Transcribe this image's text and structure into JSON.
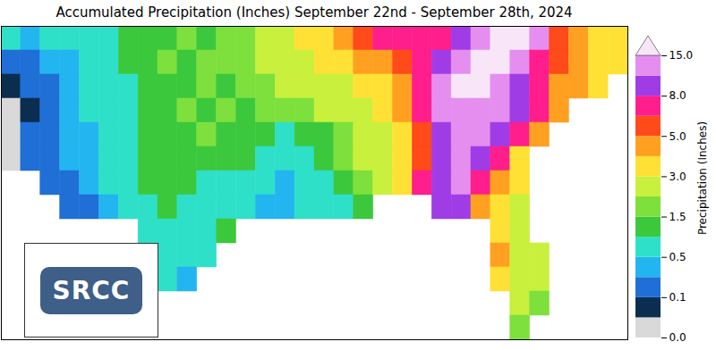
{
  "chart_data": {
    "type": "heatmap",
    "title": "Accumulated Precipitation (Inches) September 22nd - September 28th, 2024",
    "logo": "SRCC",
    "x": [
      -107,
      -106,
      -105,
      -104,
      -103,
      -102,
      -101,
      -100,
      -99,
      -98,
      -97,
      -96,
      -95,
      -94,
      -93,
      -92,
      -91,
      -90,
      -89,
      -88,
      -87,
      -86,
      -85,
      -84,
      -83,
      -82,
      -81,
      -80,
      -79,
      -78,
      -77,
      -76
    ],
    "y": [
      36.5,
      35.5,
      34.5,
      33.5,
      32.5,
      31.5,
      30.5,
      29.5,
      28.5,
      27.5,
      26.5,
      25.5,
      24.5
    ],
    "values": [
      [
        0.5,
        0.4,
        0.6,
        0.5,
        0.6,
        0.8,
        1.0,
        1.2,
        1.0,
        1.5,
        1.2,
        1.5,
        1.8,
        2.0,
        2.5,
        3,
        3.5,
        4,
        5,
        6,
        6,
        7,
        6,
        8,
        10,
        15,
        16,
        10,
        5,
        4,
        3.5,
        3
      ],
      [
        0.1,
        0.2,
        0.3,
        0.3,
        0.6,
        0.8,
        1.0,
        1.2,
        1.5,
        1.2,
        1.5,
        1.8,
        1.5,
        2.0,
        2.5,
        2.5,
        3.0,
        3.5,
        4,
        4.5,
        5,
        6,
        8,
        12,
        18,
        20,
        14,
        7,
        5,
        4,
        3.5,
        3
      ],
      [
        0.05,
        0.1,
        0.2,
        0.3,
        0.5,
        0.6,
        0.8,
        1.0,
        1.2,
        1.0,
        1.5,
        1.2,
        1.5,
        1.8,
        2.0,
        2.0,
        2.5,
        2.5,
        3,
        3.5,
        4,
        6,
        10,
        15,
        16,
        12,
        9,
        6,
        4,
        4,
        3.5,
        null
      ],
      [
        0.0,
        0.05,
        0.1,
        0.3,
        0.5,
        0.6,
        0.8,
        1.0,
        1.2,
        1.5,
        1.2,
        1.5,
        1.2,
        1.5,
        1.5,
        1.8,
        2.0,
        2,
        2.5,
        3,
        4,
        6,
        10,
        12,
        12,
        10,
        8,
        6,
        4,
        null,
        null,
        null
      ],
      [
        0.0,
        0.1,
        0.2,
        0.3,
        0.4,
        0.5,
        0.7,
        1.0,
        1.2,
        1.0,
        1.5,
        1.2,
        1.0,
        1.0,
        0.8,
        1.0,
        1.2,
        1.8,
        2.0,
        2.5,
        3.5,
        5,
        8,
        10,
        11,
        9,
        6,
        4,
        null,
        null,
        null,
        null
      ],
      [
        0.0,
        0.1,
        0.2,
        0.3,
        0.4,
        0.5,
        0.8,
        1.0,
        1.2,
        1.0,
        1.2,
        1.0,
        1.2,
        0.8,
        0.6,
        0.8,
        1.2,
        1.5,
        2.0,
        2.5,
        3.5,
        5,
        9,
        10,
        9,
        6,
        3,
        null,
        null,
        null,
        null,
        null
      ],
      [
        null,
        null,
        0.1,
        0.2,
        0.3,
        0.6,
        0.8,
        1.0,
        1.2,
        1.0,
        0.8,
        0.7,
        0.6,
        0.5,
        0.4,
        0.5,
        0.8,
        1.0,
        1.5,
        2.5,
        3.5,
        6,
        9,
        10,
        7,
        4,
        3,
        null,
        null,
        null,
        null,
        null
      ],
      [
        null,
        null,
        null,
        0.2,
        0.2,
        0.3,
        0.5,
        0.8,
        1.0,
        0.8,
        0.7,
        0.6,
        0.5,
        0.3,
        0.4,
        0.6,
        0.5,
        0.8,
        1.0,
        null,
        null,
        null,
        8,
        8,
        4,
        3,
        2.5,
        null,
        null,
        null,
        null,
        null
      ],
      [
        null,
        null,
        null,
        null,
        null,
        null,
        null,
        0.5,
        0.8,
        0.6,
        0.7,
        1.0,
        null,
        null,
        null,
        null,
        null,
        null,
        null,
        null,
        null,
        null,
        null,
        null,
        null,
        3.5,
        2.5,
        null,
        null,
        null,
        null,
        null
      ],
      [
        null,
        null,
        null,
        null,
        null,
        null,
        null,
        null,
        0.6,
        0.5,
        0.8,
        null,
        null,
        null,
        null,
        null,
        null,
        null,
        null,
        null,
        null,
        null,
        null,
        null,
        null,
        4,
        2.5,
        2,
        null,
        null,
        null,
        null
      ],
      [
        null,
        null,
        null,
        null,
        null,
        null,
        null,
        null,
        0.5,
        0.4,
        null,
        null,
        null,
        null,
        null,
        null,
        null,
        null,
        null,
        null,
        null,
        null,
        null,
        null,
        null,
        3,
        2,
        2.5,
        null,
        null,
        null,
        null
      ],
      [
        null,
        null,
        null,
        null,
        null,
        null,
        null,
        null,
        null,
        null,
        null,
        null,
        null,
        null,
        null,
        null,
        null,
        null,
        null,
        null,
        null,
        null,
        null,
        null,
        null,
        null,
        2.0,
        1.5,
        null,
        null,
        null,
        null
      ],
      [
        null,
        null,
        null,
        null,
        null,
        null,
        null,
        null,
        null,
        null,
        null,
        null,
        null,
        null,
        null,
        null,
        null,
        null,
        null,
        null,
        null,
        null,
        null,
        null,
        null,
        null,
        1.5,
        null,
        null,
        null,
        null,
        null
      ]
    ],
    "xlim": [
      -107.5,
      -75.5
    ],
    "ylim": [
      24,
      37
    ],
    "tick_labels": false,
    "colorbar": {
      "label": "Precipitation (Inches)",
      "bounds": [
        0,
        0.01,
        0.1,
        0.25,
        0.5,
        1,
        1.5,
        2,
        3,
        4,
        5,
        6,
        8,
        10,
        15
      ],
      "colors": [
        "#d9d9d9",
        "#0b2d4f",
        "#1f6fd6",
        "#23b5f0",
        "#2fe0c8",
        "#3cc83c",
        "#7ee03c",
        "#c8f03c",
        "#ffe135",
        "#ffa020",
        "#ff4a1a",
        "#ff1e8c",
        "#a03ce6",
        "#e58ef0",
        "#f8e6f8"
      ],
      "ticks": [
        {
          "value": 0,
          "label": "0.0"
        },
        0.1,
        0.5,
        1.5,
        {
          "value": 3,
          "label": "3.0"
        },
        {
          "value": 5,
          "label": "5.0"
        },
        {
          "value": 8,
          "label": "8.0"
        },
        {
          "value": 15,
          "label": "15.0"
        }
      ]
    }
  }
}
